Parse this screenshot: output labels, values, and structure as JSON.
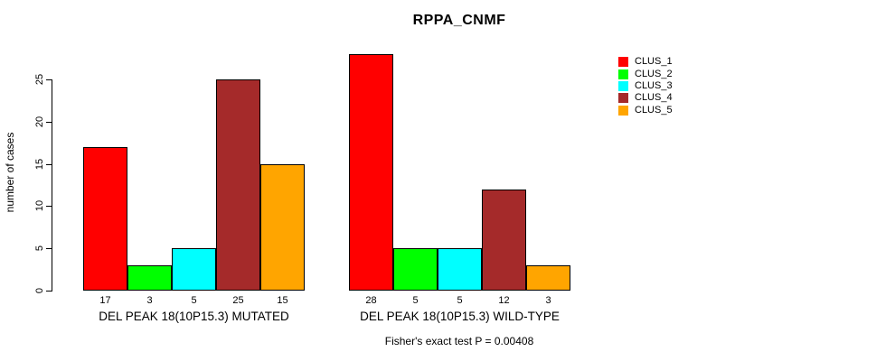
{
  "chart_data": {
    "type": "bar",
    "title": "RPPA_CNMF",
    "ylabel": "number of cases",
    "xlabel": "",
    "ylim": [
      0,
      28
    ],
    "yticks": [
      0,
      5,
      10,
      15,
      20,
      25
    ],
    "grid": false,
    "legend_position": "top-right",
    "background_color": "#ffffff",
    "bar_border_color": "#000000",
    "categories": [
      "DEL PEAK 18(10P15.3) MUTATED",
      "DEL PEAK 18(10P15.3) WILD-TYPE"
    ],
    "series": [
      {
        "name": "CLUS_1",
        "color": "#ff0000",
        "values": [
          17,
          28
        ]
      },
      {
        "name": "CLUS_2",
        "color": "#00ff00",
        "values": [
          3,
          5
        ]
      },
      {
        "name": "CLUS_3",
        "color": "#00ffff",
        "values": [
          5,
          5
        ]
      },
      {
        "name": "CLUS_4",
        "color": "#a52a2a",
        "values": [
          25,
          12
        ]
      },
      {
        "name": "CLUS_5",
        "color": "#ffa500",
        "values": [
          15,
          3
        ]
      }
    ],
    "bar_value_labels": [
      [
        17,
        3,
        5,
        25,
        15
      ],
      [
        28,
        5,
        5,
        12,
        3
      ]
    ],
    "footnote": "Fisher's exact test P = 0.00408"
  }
}
